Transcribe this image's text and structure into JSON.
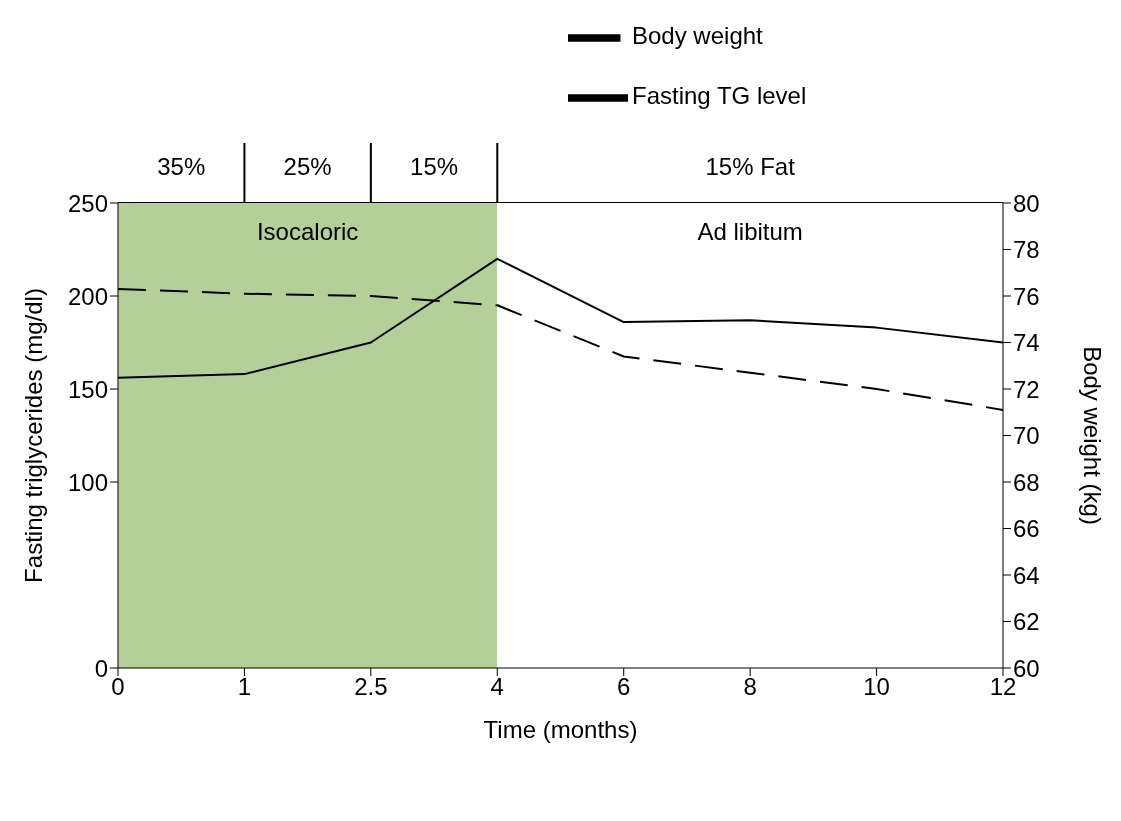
{
  "chart_data": {
    "type": "line",
    "xlabel": "Time (months)",
    "ylabel": "Fasting triglycerides (mg/dl)",
    "y2label": "Body weight (kg)",
    "categories": [
      "0",
      "1",
      "2.5",
      "4",
      "6",
      "8",
      "10",
      "12"
    ],
    "series": [
      {
        "name": "Body weight",
        "color": "#000000",
        "line_style": "dashed",
        "axis": "y2",
        "values": [
          76.3,
          76.1,
          76.0,
          75.6,
          73.4,
          72.7,
          72.0,
          71.1
        ]
      },
      {
        "name": "Fasting TG level",
        "color": "#000000",
        "line_style": "solid",
        "values": [
          156,
          158,
          175,
          220,
          186,
          187,
          183,
          175
        ]
      }
    ],
    "ylim": [
      0,
      250
    ],
    "yticks": [
      0,
      100,
      150,
      200,
      250
    ],
    "y2lim": [
      60,
      80
    ],
    "y2ticks": [
      60,
      62,
      64,
      66,
      68,
      70,
      72,
      74,
      76,
      78,
      80
    ],
    "bands": [
      {
        "axis": "x",
        "from": "0",
        "to": "4",
        "label": "Isocaloric",
        "color": "#b5cf98"
      },
      {
        "axis": "x",
        "from": "4",
        "to": "12",
        "label": "Ad libitum",
        "color": "#ffffff"
      }
    ],
    "annotations": [
      "35%",
      "25%",
      "15%",
      "15% Fat"
    ],
    "legend": "top",
    "marker": "none",
    "grid": false
  }
}
